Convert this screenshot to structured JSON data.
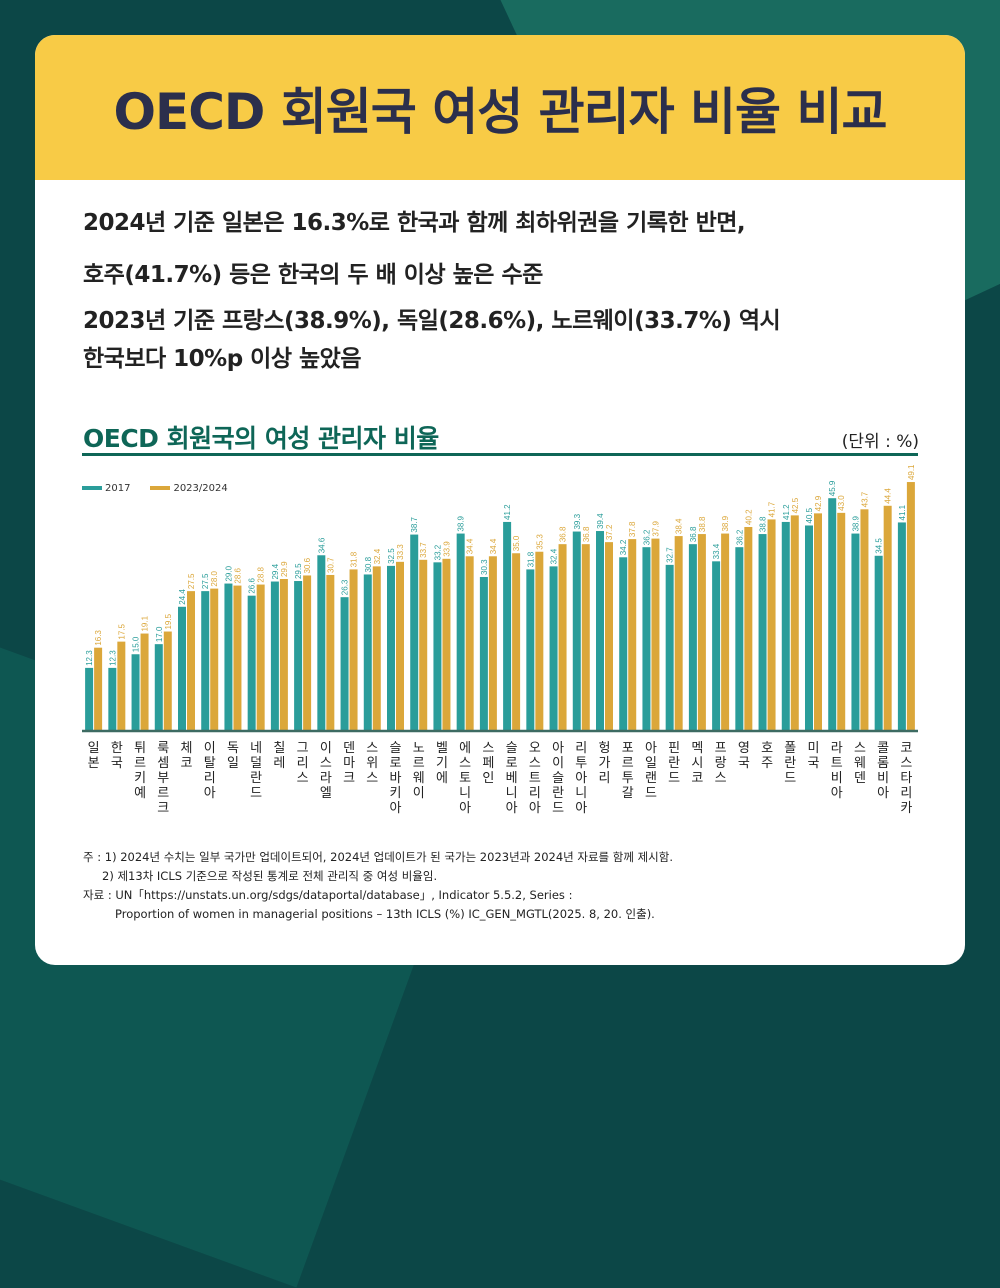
{
  "title": "OECD 회원국 여성 관리자 비율 비교",
  "summary": [
    "2024년 기준 일본은 16.3%로 한국과 함께 최하위권을 기록한 반면,",
    "호주(41.7%) 등은 한국의 두 배 이상 높은 수준",
    "2023년 기준 프랑스(38.9%), 독일(28.6%), 노르웨이(33.7%) 역시",
    "한국보다 10%p 이상 높았음"
  ],
  "unit": "(단위 : %)",
  "notes": [
    "주 : 1) 2024년 수치는 일부 국가만 업데이트되어, 2024년 업데이트가 된 국가는 2023년과 2024년 자료를 함께 제시함.",
    "2) 제13차 ICLS 기준으로 작성된 통계로 전체 관리직 중 여성 비율임.",
    "자료 : UN「https://unstats.un.org/sdgs/dataportal/database」, Indicator 5.5.2, Series :",
    "Proportion of women in managerial positions – 13th ICLS (%) IC_GEN_MGTL(2025. 8, 20. 인출)."
  ],
  "colors": {
    "s2017": "#2a9d9a",
    "s2024": "#dba73a"
  },
  "chart_data": {
    "type": "bar",
    "title": "OECD 회원국의 여성 관리자 비율",
    "ylim": [
      0,
      50
    ],
    "legend": "top-left",
    "categories": [
      "일본",
      "한국",
      "튀르키예",
      "룩셈부르크",
      "체코",
      "이탈리아",
      "독일",
      "네덜란드",
      "칠레",
      "그리스",
      "이스라엘",
      "덴마크",
      "스위스",
      "슬로바키아",
      "노르웨이",
      "벨기에",
      "에스토니아",
      "스페인",
      "슬로베니아",
      "오스트리아",
      "아이슬란드",
      "리투아니아",
      "헝가리",
      "포르투갈",
      "아일랜드",
      "핀란드",
      "멕시코",
      "프랑스",
      "영국",
      "호주",
      "폴란드",
      "미국",
      "라트비아",
      "스웨덴",
      "콜롬비아",
      "코스타리카"
    ],
    "series": [
      {
        "name": "2017",
        "values": [
          12.3,
          12.3,
          15.0,
          17.0,
          24.4,
          27.5,
          29.0,
          26.6,
          29.4,
          29.5,
          34.6,
          26.3,
          30.8,
          32.5,
          38.7,
          33.2,
          38.9,
          30.3,
          41.2,
          31.8,
          32.4,
          39.3,
          39.4,
          34.2,
          36.2,
          32.7,
          36.8,
          33.4,
          36.2,
          38.8,
          41.2,
          40.5,
          45.9,
          38.9,
          34.5,
          41.1
        ]
      },
      {
        "name": "2023/2024",
        "values": [
          16.3,
          17.5,
          19.1,
          19.5,
          27.5,
          28.0,
          28.6,
          28.8,
          29.9,
          30.6,
          30.7,
          31.8,
          32.4,
          33.3,
          33.7,
          33.9,
          34.4,
          34.4,
          35.0,
          35.3,
          36.8,
          36.8,
          37.2,
          37.8,
          37.9,
          38.4,
          38.8,
          38.9,
          40.2,
          41.7,
          42.5,
          42.9,
          43.0,
          43.7,
          44.4,
          49.1
        ]
      }
    ]
  }
}
